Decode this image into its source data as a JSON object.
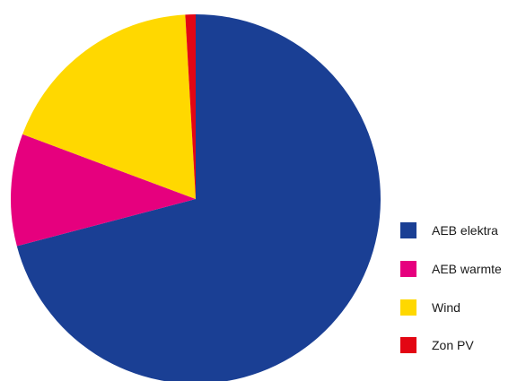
{
  "chart_data": {
    "type": "pie",
    "title": "",
    "start_angle_deg": 0,
    "direction": "clockwise",
    "slices": [
      {
        "label": "AEB elektra",
        "value": 70.9,
        "color": "#1a3f94"
      },
      {
        "label": "AEB warmte",
        "value": 9.8,
        "color": "#e6007e"
      },
      {
        "label": "Wind",
        "value": 18.4,
        "color": "#ffd800"
      },
      {
        "label": "Zon PV",
        "value": 0.9,
        "color": "#e30613"
      }
    ],
    "legend": {
      "position": "right",
      "order": [
        "AEB elektra",
        "AEB warmte",
        "Wind",
        "Zon PV"
      ]
    }
  }
}
